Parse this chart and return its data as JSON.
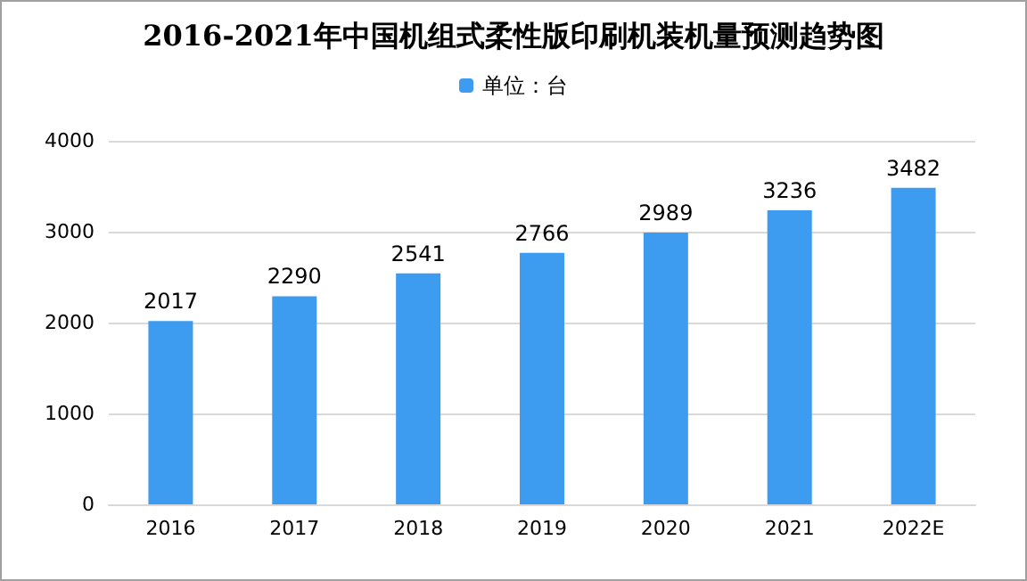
{
  "chart_data": {
    "type": "bar",
    "title": "2016-2021年中国机组式柔性版印刷机装机量预测趋势图",
    "categories": [
      "2016",
      "2017",
      "2018",
      "2019",
      "2020",
      "2021",
      "2022E"
    ],
    "series": [
      {
        "name": "单位：台",
        "color": "#3d9cf0",
        "values": [
          2017,
          2290,
          2541,
          2766,
          2989,
          3236,
          3482
        ]
      }
    ],
    "ylim": [
      0,
      4000
    ],
    "yticks": [
      0,
      1000,
      2000,
      3000,
      4000
    ],
    "grid": "y",
    "legend": "top",
    "data_labels": true
  }
}
